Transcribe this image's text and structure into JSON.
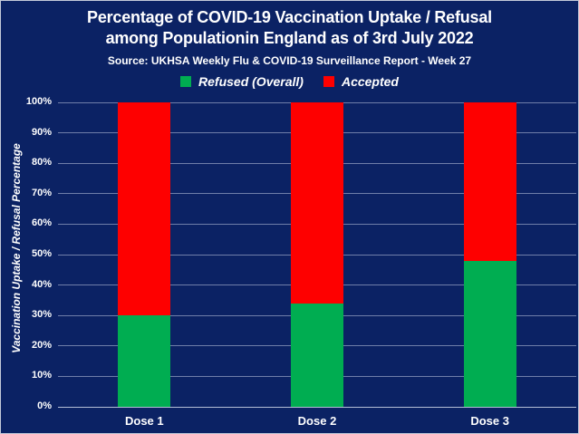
{
  "page": {
    "title_line1": "Percentage of COVID-19 Vaccination Uptake / Refusal",
    "title_line2": "among Populationin England as of 3rd July 2022",
    "source_line": "Source: UKHSA Weekly Flu & COVID-19 Surveillance Report - Week 27"
  },
  "colors": {
    "background_navy": "#0b2264",
    "refused_green": "#00ad51",
    "accepted_red": "#fe0000",
    "gridline": "#8e99ba",
    "text_white": "#ffffff"
  },
  "chart_data": {
    "type": "bar",
    "stacked": true,
    "title": "Percentage of COVID-19 Vaccination Uptake / Refusal among Populationin England as of 3rd July 2022",
    "subtitle": "Source: UKHSA Weekly Flu & COVID-19 Surveillance Report - Week 27",
    "categories": [
      "Dose 1",
      "Dose 2",
      "Dose 3"
    ],
    "series": [
      {
        "name": "Refused (Overall)",
        "color": "#00ad51",
        "values": [
          30,
          34,
          48
        ]
      },
      {
        "name": "Accepted",
        "color": "#fe0000",
        "values": [
          70,
          66,
          52
        ]
      }
    ],
    "ylabel": "Vaccination Uptake / Refusal Percentage",
    "xlabel": "",
    "ylim": [
      0,
      100
    ],
    "ytick_step": 10,
    "ytick_labels": [
      "0%",
      "10%",
      "20%",
      "30%",
      "40%",
      "50%",
      "60%",
      "70%",
      "80%",
      "90%",
      "100%"
    ],
    "grid": "horizontal",
    "legend_position": "top-center"
  }
}
